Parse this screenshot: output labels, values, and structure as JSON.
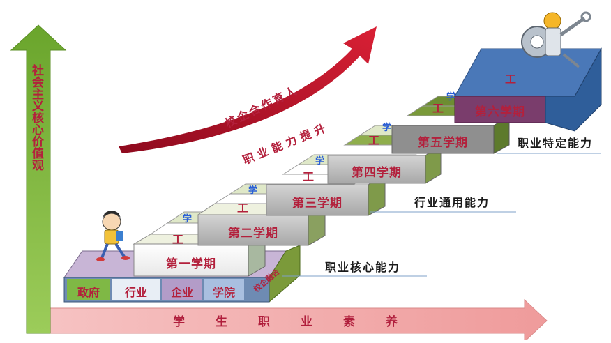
{
  "vertical_axis": {
    "label": "社会主义核心价值观"
  },
  "horizontal_axis": {
    "label": "学生职业素养"
  },
  "growth_arrow": {
    "line1": "校企合作育人",
    "line2": "职业能力提升"
  },
  "semesters": [
    "第一学期",
    "第二学期",
    "第三学期",
    "第四学期",
    "第五学期",
    "第六学期"
  ],
  "step_labels": {
    "work": "工",
    "study": "学"
  },
  "base_row": {
    "items": [
      "政府",
      "行业",
      "企业",
      "学院"
    ],
    "side": "校企融合"
  },
  "abilities": [
    "职业核心能力",
    "行业通用能力",
    "职业特定能力"
  ],
  "colors": {
    "accent_red": "#b3203c",
    "arrow_green": "#7fb33f",
    "arrow_pink": "#f2a7a7",
    "study_blue": "#2a5fd6"
  }
}
